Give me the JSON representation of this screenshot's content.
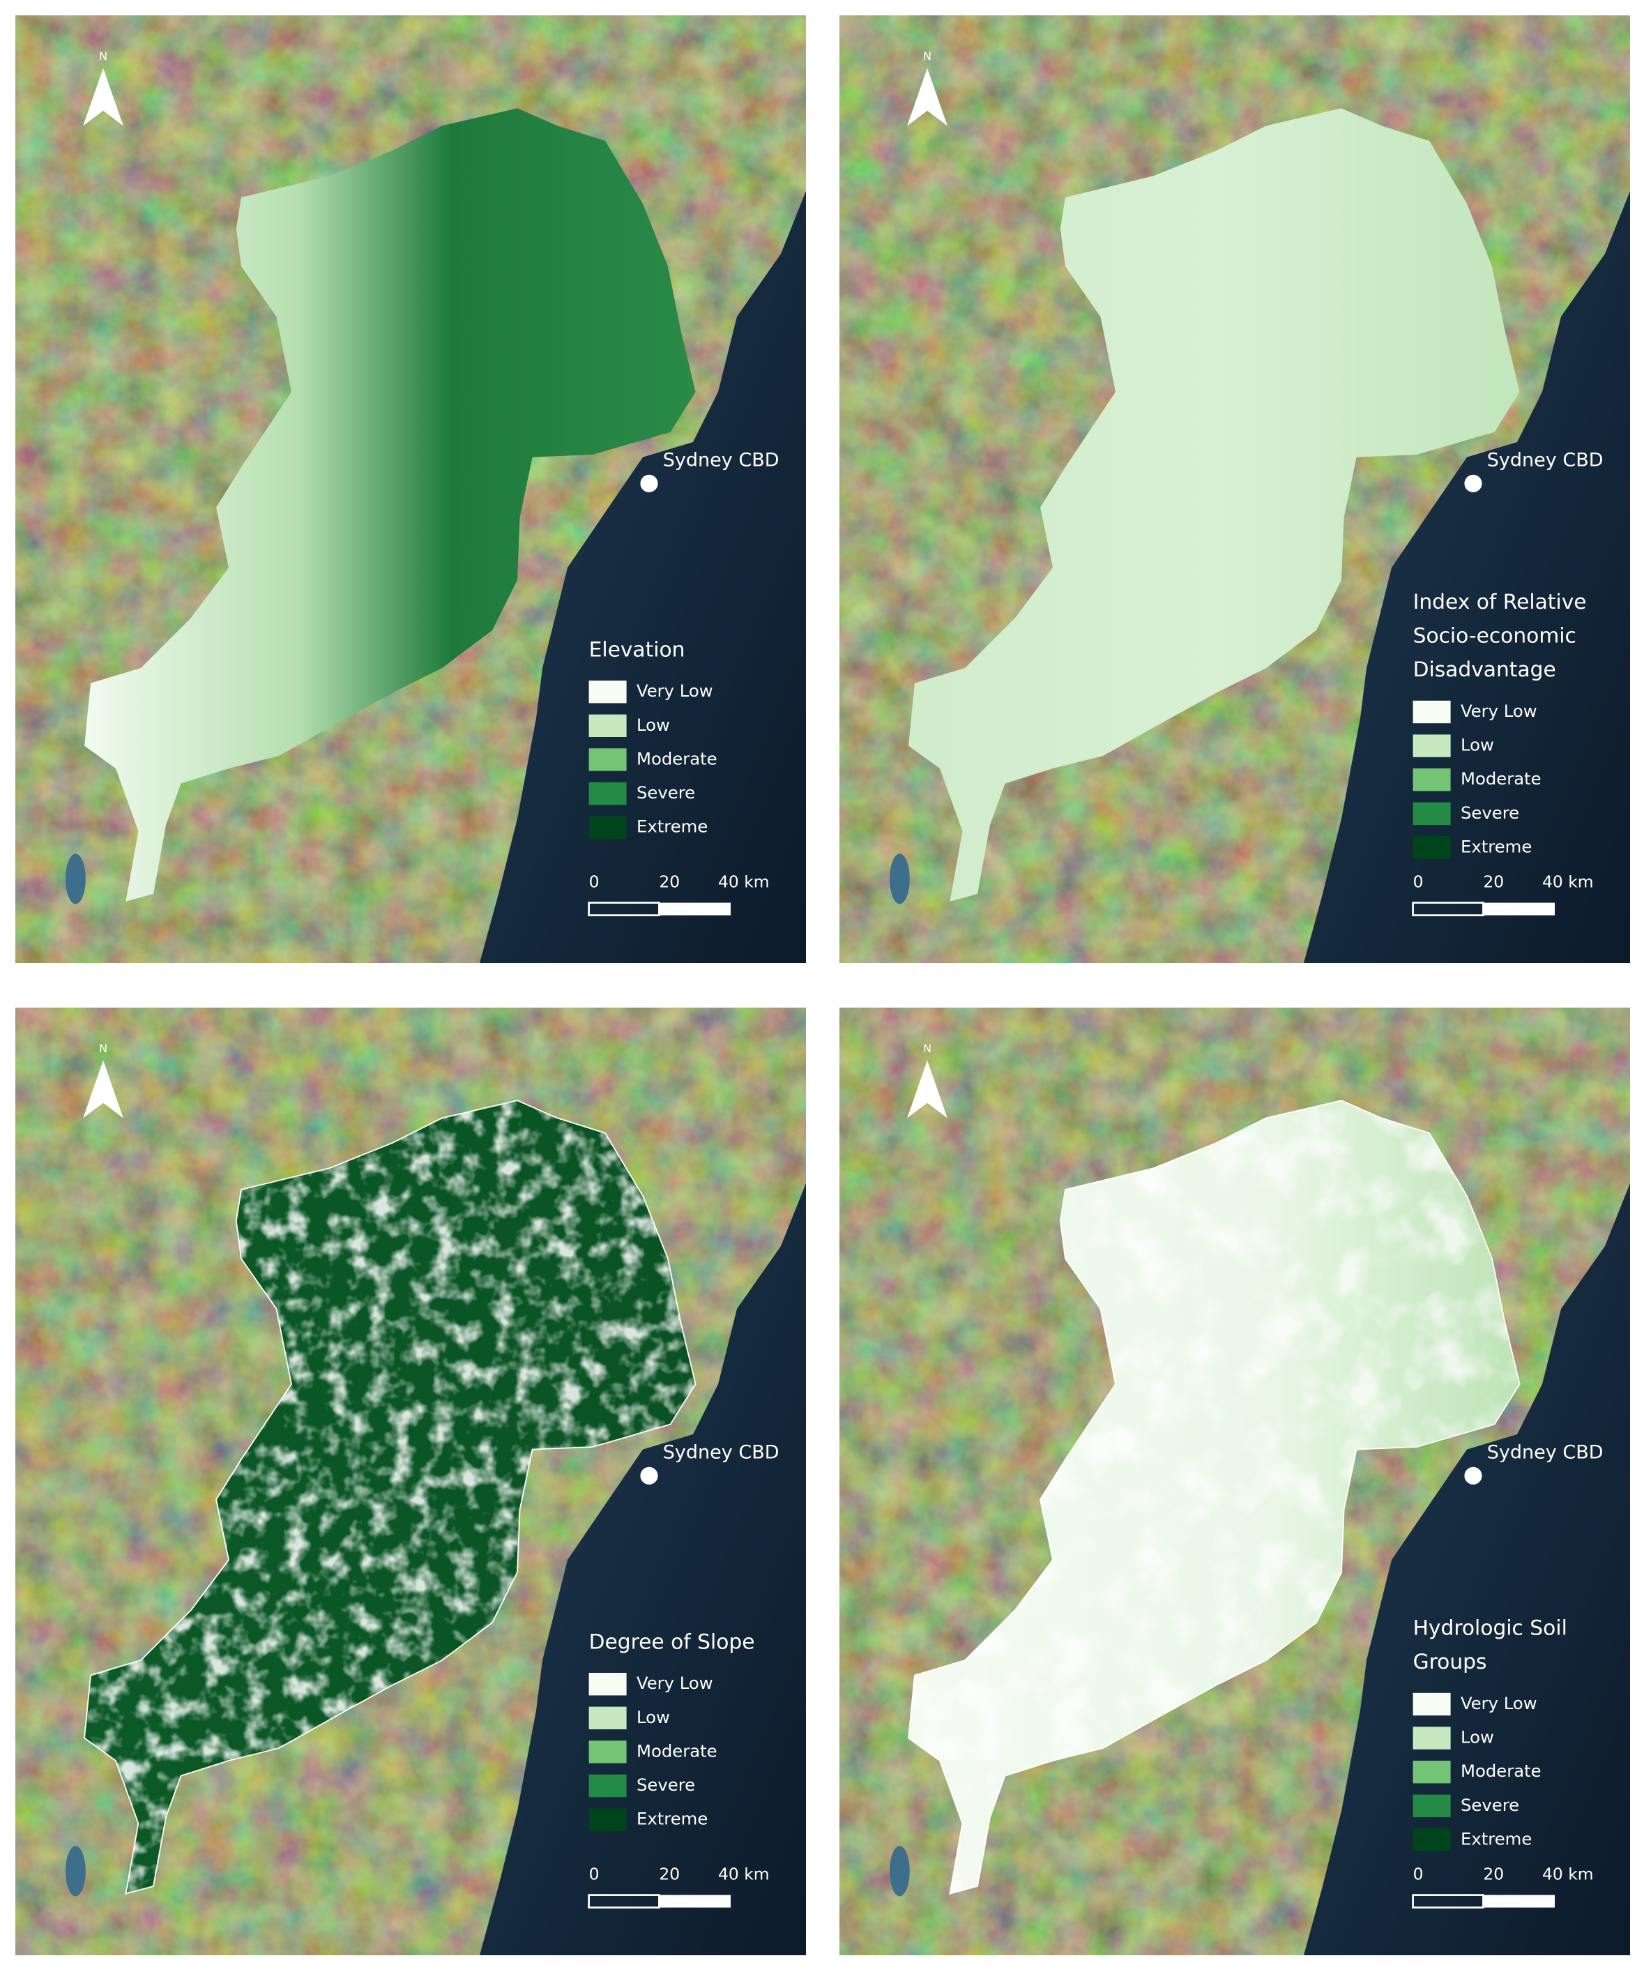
{
  "north_label": "N",
  "city_label": "Sydney CBD",
  "scale_labels": [
    "0",
    "20",
    "40 km"
  ],
  "legend_labels": [
    "Very Low",
    "Low",
    "Moderate",
    "Severe",
    "Extreme"
  ],
  "legend_colors": [
    "#f7fcf5",
    "#c7e9c0",
    "#74c476",
    "#238b45",
    "#00441b"
  ],
  "panels": [
    {
      "legend_title": [
        "Elevation"
      ]
    },
    {
      "legend_title": [
        "Index of Relative",
        "Socio-economic",
        "Disadvantage"
      ]
    },
    {
      "legend_title": [
        "Degree of Slope"
      ]
    },
    {
      "legend_title": [
        "Hydrologic Soil",
        "Groups"
      ]
    }
  ]
}
